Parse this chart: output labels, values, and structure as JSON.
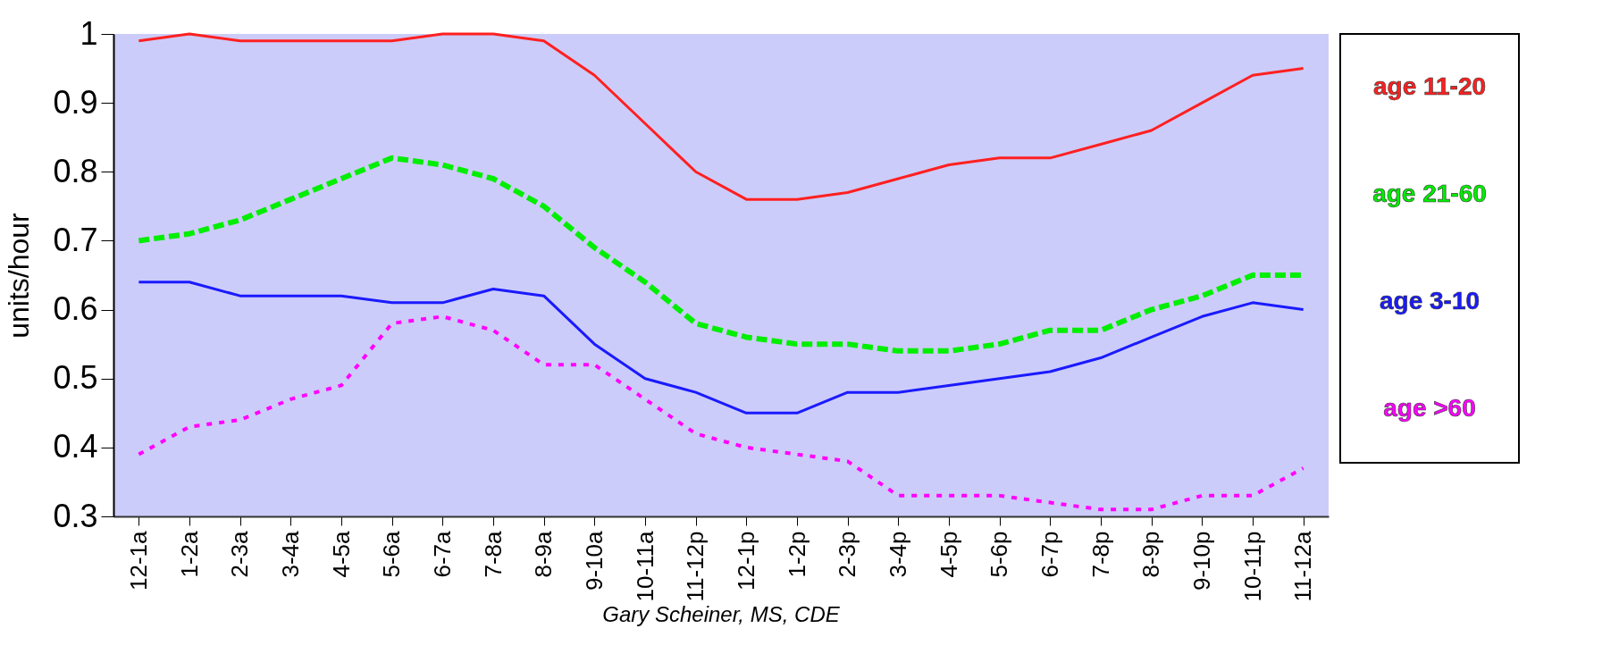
{
  "chart_data": {
    "type": "line",
    "ylabel": "units/hour",
    "categories": [
      "12-1a",
      "1-2a",
      "2-3a",
      "3-4a",
      "4-5a",
      "5-6a",
      "6-7a",
      "7-8a",
      "8-9a",
      "9-10a",
      "10-11a",
      "11-12p",
      "12-1p",
      "1-2p",
      "2-3p",
      "3-4p",
      "4-5p",
      "5-6p",
      "6-7p",
      "7-8p",
      "8-9p",
      "9-10p",
      "10-11p",
      "11-12a"
    ],
    "series": [
      {
        "name": "age 11-20",
        "color": "#ff2020",
        "line_style": "solid",
        "values": [
          0.99,
          1.0,
          0.99,
          0.99,
          0.99,
          0.99,
          1.0,
          1.0,
          0.99,
          0.94,
          0.87,
          0.8,
          0.76,
          0.76,
          0.77,
          0.79,
          0.81,
          0.82,
          0.82,
          0.84,
          0.86,
          0.9,
          0.94,
          0.95
        ]
      },
      {
        "name": "age 21-60",
        "color": "#00ee00",
        "line_style": "dashed",
        "values": [
          0.7,
          0.71,
          0.73,
          0.76,
          0.79,
          0.82,
          0.81,
          0.79,
          0.75,
          0.69,
          0.64,
          0.58,
          0.56,
          0.55,
          0.55,
          0.54,
          0.54,
          0.55,
          0.57,
          0.57,
          0.6,
          0.62,
          0.65,
          0.65
        ]
      },
      {
        "name": "age 3-10",
        "color": "#1a1aff",
        "line_style": "solid",
        "values": [
          0.64,
          0.64,
          0.62,
          0.62,
          0.62,
          0.61,
          0.61,
          0.63,
          0.62,
          0.55,
          0.5,
          0.48,
          0.45,
          0.45,
          0.48,
          0.48,
          0.49,
          0.5,
          0.51,
          0.53,
          0.56,
          0.59,
          0.61,
          0.6
        ]
      },
      {
        "name": "age >60",
        "color": "#ff00ff",
        "line_style": "dotted",
        "values": [
          0.39,
          0.43,
          0.44,
          0.47,
          0.49,
          0.58,
          0.59,
          0.57,
          0.52,
          0.52,
          0.47,
          0.42,
          0.4,
          0.39,
          0.38,
          0.33,
          0.33,
          0.33,
          0.32,
          0.31,
          0.31,
          0.33,
          0.33,
          0.37
        ]
      }
    ],
    "ylim": [
      0.3,
      1
    ],
    "yticks": [
      0.3,
      0.4,
      0.5,
      0.6,
      0.7,
      0.8,
      0.9,
      {
        "value": 1,
        "label": "1"
      }
    ],
    "grid": false,
    "legend": "right",
    "marker": "none",
    "annotations": [
      "Gary Scheiner, MS, CDE"
    ]
  }
}
